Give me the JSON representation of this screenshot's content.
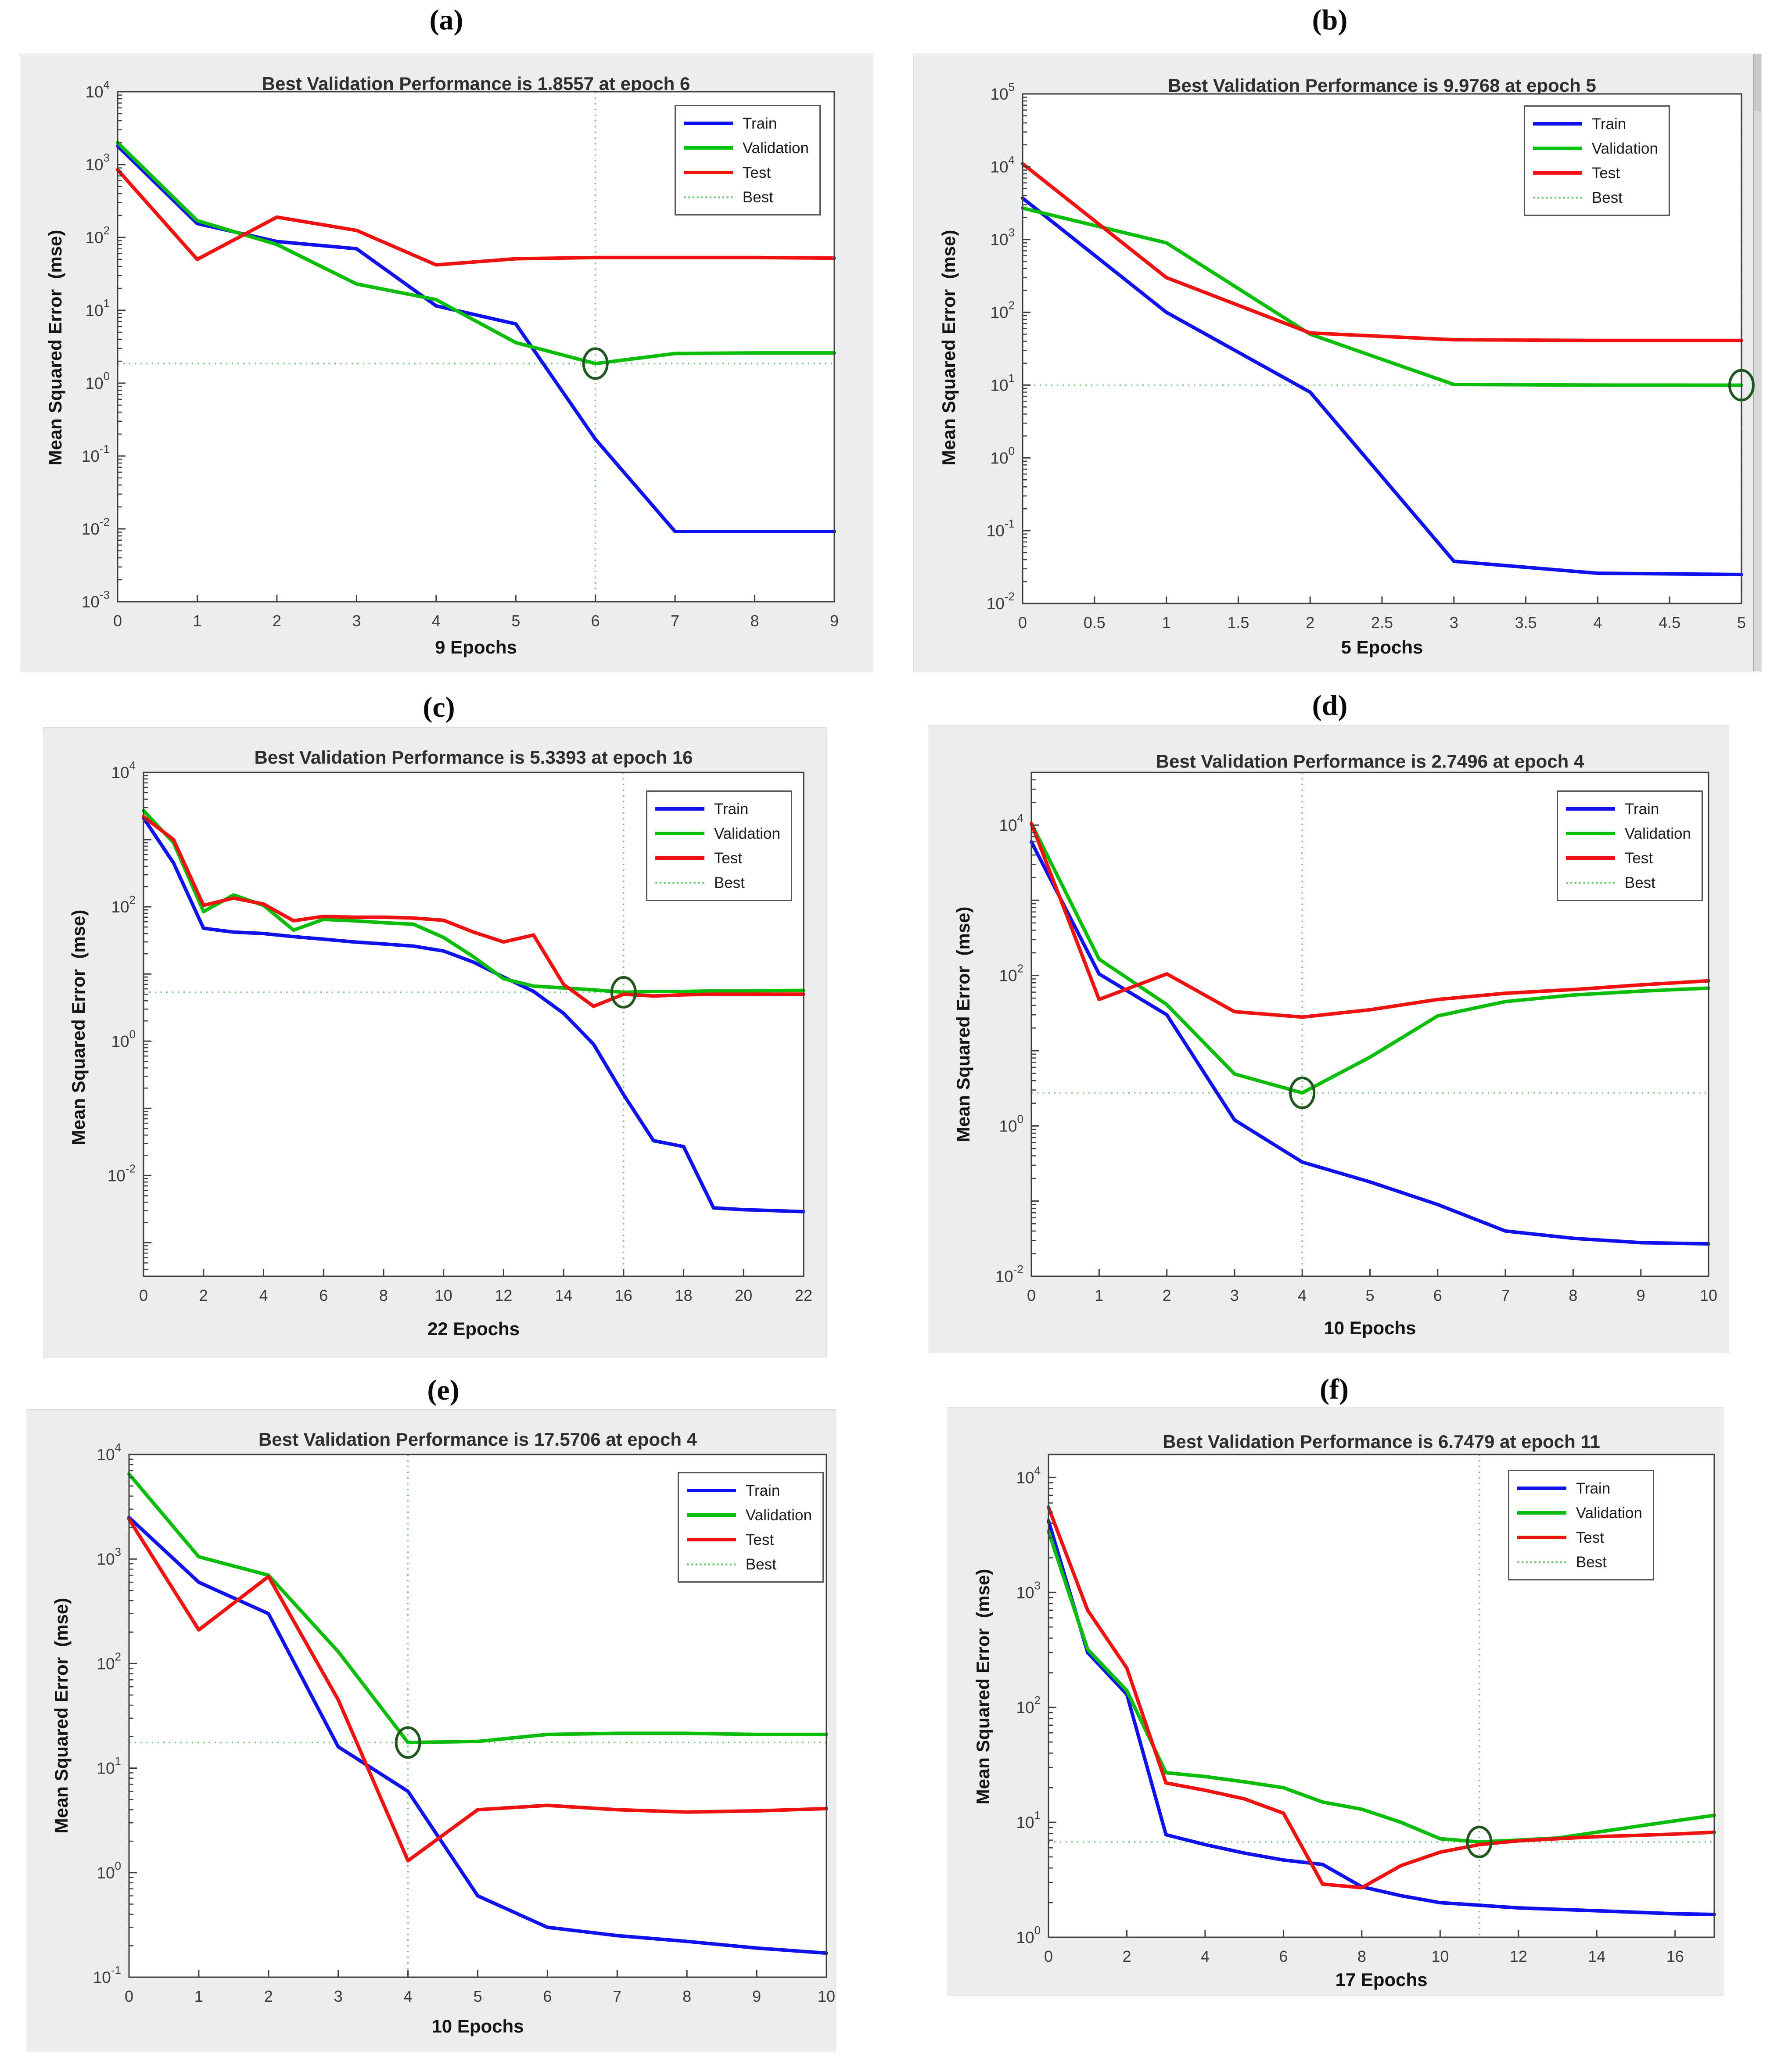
{
  "page": {
    "background": "#ffffff"
  },
  "colors": {
    "train": "#0f12ef",
    "validation": "#09bd09",
    "test": "#f01111",
    "best_line": "#77c87a",
    "best_marker": "#20571f",
    "axis": "#3d3d3d",
    "tick_text": "#3a3a3a"
  },
  "chart_data": [
    {
      "type": "line",
      "panel_label": "(a)",
      "title": "Best Validation Performance is 1.8557 at epoch 6",
      "xlabel": "9 Epochs",
      "ylabel": "Mean Squared Error  (mse)",
      "legend": [
        "Train",
        "Validation",
        "Test",
        "Best"
      ],
      "xlim": [
        0,
        9
      ],
      "ylim_log": [
        -3,
        4
      ],
      "ytick_exponents": [
        4,
        3,
        2,
        1,
        0,
        -1,
        -2,
        -3
      ],
      "xtick_values": [
        0,
        1,
        2,
        3,
        4,
        5,
        6,
        7,
        8,
        9
      ],
      "xtick_labels": [
        "0",
        "1",
        "2",
        "3",
        "4",
        "5",
        "6",
        "7",
        "8",
        "9"
      ],
      "best": {
        "x": 6,
        "y": 1.8557
      },
      "series": [
        {
          "name": "Train",
          "color_key": "train",
          "values": [
            1800,
            155,
            88,
            70,
            11.5,
            6.5,
            0.17,
            0.0092,
            0.0092,
            0.0092
          ]
        },
        {
          "name": "Validation",
          "color_key": "validation",
          "values": [
            2000,
            170,
            80,
            23,
            14,
            3.6,
            1.8557,
            2.55,
            2.6,
            2.6
          ]
        },
        {
          "name": "Test",
          "color_key": "test",
          "values": [
            850,
            50,
            190,
            125,
            42,
            51,
            53,
            53,
            53,
            52
          ]
        }
      ]
    },
    {
      "type": "line",
      "panel_label": "(b)",
      "title": "Best Validation Performance is 9.9768 at epoch 5",
      "xlabel": "5 Epochs",
      "ylabel": "Mean Squared Error  (mse)",
      "legend": [
        "Train",
        "Validation",
        "Test",
        "Best"
      ],
      "xlim": [
        0,
        5
      ],
      "ylim_log": [
        -2,
        5
      ],
      "ytick_exponents": [
        5,
        4,
        3,
        2,
        1,
        0,
        -1,
        -2
      ],
      "xtick_values": [
        0,
        0.5,
        1,
        1.5,
        2,
        2.5,
        3,
        3.5,
        4,
        4.5,
        5
      ],
      "xtick_labels": [
        "0",
        "0.5",
        "1",
        "1.5",
        "2",
        "2.5",
        "3",
        "3.5",
        "4",
        "4.5",
        "5"
      ],
      "best": {
        "x": 5,
        "y": 9.9768
      },
      "series": [
        {
          "name": "Train",
          "color_key": "train",
          "values": [
            3700,
            100,
            8,
            0.038,
            0.026,
            0.025
          ]
        },
        {
          "name": "Validation",
          "color_key": "validation",
          "values": [
            2700,
            900,
            50,
            10.2,
            10.0,
            9.9768
          ]
        },
        {
          "name": "Test",
          "color_key": "test",
          "values": [
            11000,
            300,
            52,
            42,
            41,
            41
          ]
        }
      ]
    },
    {
      "type": "line",
      "panel_label": "(c)",
      "title": "Best Validation Performance is 5.3393 at epoch 16",
      "xlabel": "22 Epochs",
      "ylabel": "Mean Squared Error  (mse)",
      "legend": [
        "Train",
        "Validation",
        "Test",
        "Best"
      ],
      "xlim": [
        0,
        22
      ],
      "ylim_log": [
        -3.5,
        4
      ],
      "ytick_exponents": [
        4,
        2,
        0,
        -2
      ],
      "xtick_values": [
        0,
        2,
        4,
        6,
        8,
        10,
        12,
        14,
        16,
        18,
        20,
        22
      ],
      "xtick_labels": [
        "0",
        "2",
        "4",
        "6",
        "8",
        "10",
        "12",
        "14",
        "16",
        "18",
        "20",
        "22"
      ],
      "best": {
        "x": 16,
        "y": 5.3393
      },
      "series": [
        {
          "name": "Train",
          "color_key": "train",
          "values": [
            2100,
            450,
            48,
            42,
            40,
            36,
            33,
            30,
            28,
            26,
            22,
            15,
            9,
            5.5,
            2.6,
            0.9,
            0.16,
            0.033,
            0.027,
            0.0033,
            0.0031,
            0.003,
            0.0029
          ]
        },
        {
          "name": "Validation",
          "color_key": "validation",
          "values": [
            2700,
            900,
            85,
            150,
            105,
            45,
            65,
            62,
            58,
            55,
            35,
            18,
            8.5,
            6.6,
            6.2,
            5.8,
            5.3393,
            5.5,
            5.5,
            5.6,
            5.6,
            5.65,
            5.7
          ]
        },
        {
          "name": "Test",
          "color_key": "test",
          "values": [
            2200,
            1000,
            105,
            135,
            110,
            62,
            72,
            70,
            70,
            68,
            63,
            42,
            30,
            38,
            7,
            3.3,
            5.0,
            4.7,
            4.9,
            5.0,
            5.0,
            5.0,
            5.0
          ]
        }
      ]
    },
    {
      "type": "line",
      "panel_label": "(d)",
      "title": "Best Validation Performance is 2.7496 at epoch 4",
      "xlabel": "10 Epochs",
      "ylabel": "Mean Squared Error  (mse)",
      "legend": [
        "Train",
        "Validation",
        "Test",
        "Best"
      ],
      "xlim": [
        0,
        10
      ],
      "ylim_log": [
        -2,
        4.7
      ],
      "ytick_exponents": [
        4,
        2,
        0,
        -2
      ],
      "xtick_values": [
        0,
        1,
        2,
        3,
        4,
        5,
        6,
        7,
        8,
        9,
        10
      ],
      "xtick_labels": [
        "0",
        "1",
        "2",
        "3",
        "4",
        "5",
        "6",
        "7",
        "8",
        "9",
        "10"
      ],
      "best": {
        "x": 4,
        "y": 2.7496
      },
      "series": [
        {
          "name": "Train",
          "color_key": "train",
          "values": [
            6000,
            105,
            30,
            1.2,
            0.33,
            0.18,
            0.09,
            0.04,
            0.032,
            0.028,
            0.027
          ]
        },
        {
          "name": "Validation",
          "color_key": "validation",
          "values": [
            10500,
            165,
            41,
            4.9,
            2.7496,
            8.2,
            29,
            45,
            55,
            62,
            68
          ]
        },
        {
          "name": "Test",
          "color_key": "test",
          "values": [
            10500,
            48,
            105,
            33,
            28,
            35,
            48,
            58,
            65,
            75,
            85
          ]
        }
      ]
    },
    {
      "type": "line",
      "panel_label": "(e)",
      "title": "Best Validation Performance is 17.5706 at epoch 4",
      "xlabel": "10 Epochs",
      "ylabel": "Mean Squared Error  (mse)",
      "legend": [
        "Train",
        "Validation",
        "Test",
        "Best"
      ],
      "xlim": [
        0,
        10
      ],
      "ylim_log": [
        -1,
        4
      ],
      "ytick_exponents": [
        4,
        3,
        2,
        1,
        0,
        -1
      ],
      "xtick_values": [
        0,
        1,
        2,
        3,
        4,
        5,
        6,
        7,
        8,
        9,
        10
      ],
      "xtick_labels": [
        "0",
        "1",
        "2",
        "3",
        "4",
        "5",
        "6",
        "7",
        "8",
        "9",
        "10"
      ],
      "best": {
        "x": 4,
        "y": 17.5706
      },
      "series": [
        {
          "name": "Train",
          "color_key": "train",
          "values": [
            2500,
            600,
            300,
            16,
            6,
            0.6,
            0.3,
            0.25,
            0.22,
            0.19,
            0.17
          ]
        },
        {
          "name": "Validation",
          "color_key": "validation",
          "values": [
            6500,
            1050,
            700,
            130,
            17.5706,
            18,
            21,
            21.5,
            21.5,
            21,
            21
          ]
        },
        {
          "name": "Test",
          "color_key": "test",
          "values": [
            2400,
            210,
            680,
            45,
            1.3,
            4.0,
            4.4,
            4.0,
            3.8,
            3.9,
            4.1
          ]
        }
      ]
    },
    {
      "type": "line",
      "panel_label": "(f)",
      "title": "Best Validation Performance is 6.7479 at epoch 11",
      "xlabel": "17 Epochs",
      "ylabel": "Mean Squared Error  (mse)",
      "legend": [
        "Train",
        "Validation",
        "Test",
        "Best"
      ],
      "xlim": [
        0,
        17
      ],
      "ylim_log": [
        0,
        4.2
      ],
      "ytick_exponents": [
        4,
        3,
        2,
        1,
        0
      ],
      "xtick_values": [
        0,
        2,
        4,
        6,
        8,
        10,
        12,
        14,
        16
      ],
      "xtick_labels": [
        "0",
        "2",
        "4",
        "6",
        "8",
        "10",
        "12",
        "14",
        "16"
      ],
      "best": {
        "x": 11,
        "y": 6.7479
      },
      "series": [
        {
          "name": "Train",
          "color_key": "train",
          "values": [
            4200,
            300,
            130,
            7.8,
            6.4,
            5.4,
            4.7,
            4.3,
            2.75,
            2.3,
            2.0,
            1.9,
            1.8,
            1.75,
            1.7,
            1.65,
            1.6,
            1.58
          ]
        },
        {
          "name": "Validation",
          "color_key": "validation",
          "values": [
            3400,
            320,
            140,
            27,
            25,
            22.5,
            20,
            15,
            13,
            10,
            7.2,
            6.7479,
            7.0,
            7.3,
            8.2,
            9.2,
            10.3,
            11.5
          ]
        },
        {
          "name": "Test",
          "color_key": "test",
          "values": [
            5500,
            700,
            220,
            22,
            19,
            16,
            12,
            2.9,
            2.7,
            4.2,
            5.5,
            6.4,
            6.9,
            7.2,
            7.5,
            7.7,
            7.9,
            8.2
          ]
        }
      ]
    }
  ]
}
